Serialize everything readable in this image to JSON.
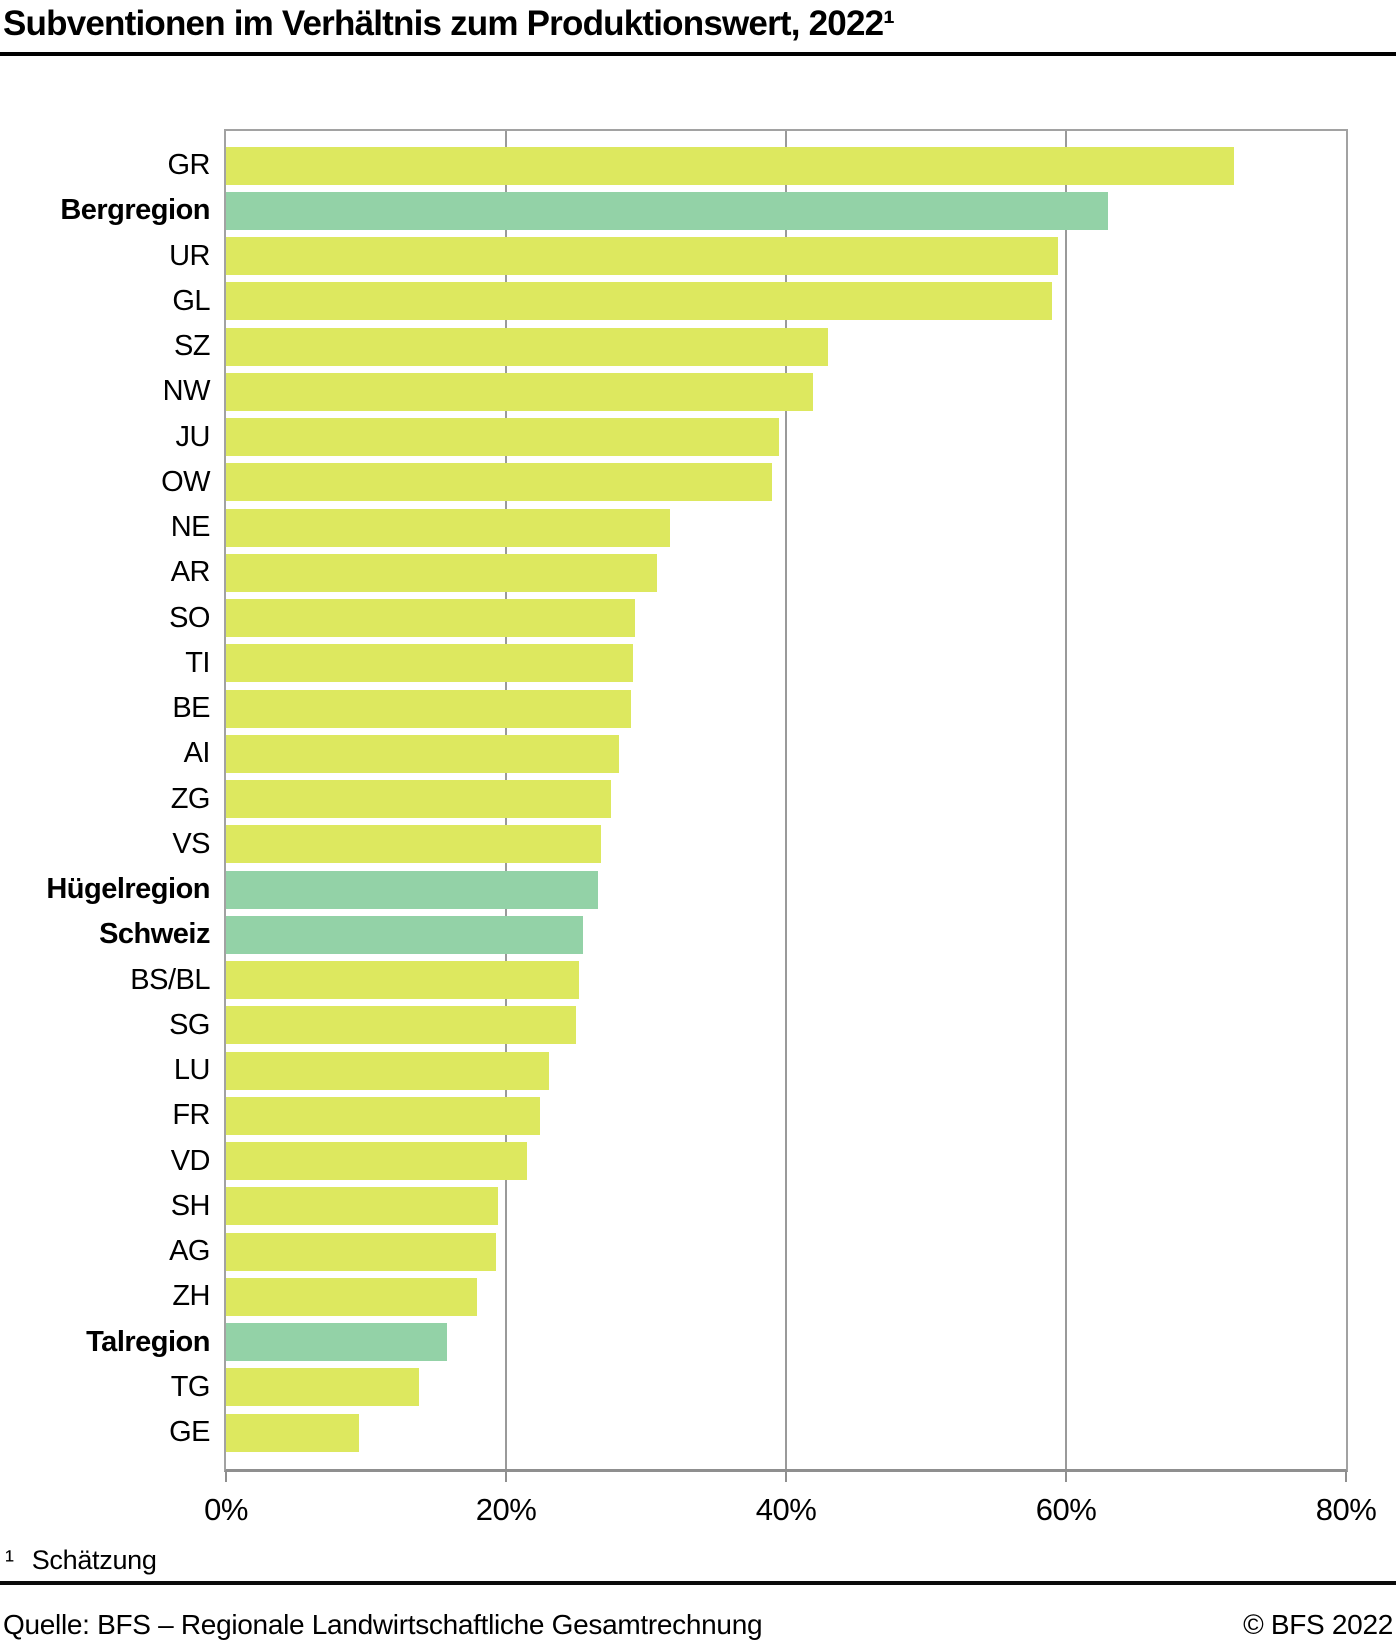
{
  "header": {
    "title": "Subventionen im Verhältnis zum Produktionswert, 2022¹"
  },
  "footnote": {
    "marker": "¹",
    "text": "Schätzung"
  },
  "footer": {
    "source": "Quelle: BFS – Regionale Landwirtschaftliche Gesamtrechnung",
    "copyright": "© BFS 2022"
  },
  "chart_data": {
    "type": "bar",
    "orientation": "horizontal",
    "title": "Subventionen im Verhältnis zum Produktionswert, 2022¹",
    "xlabel": "",
    "ylabel": "",
    "unit": "percent",
    "xlim": [
      0,
      80
    ],
    "x_ticks": [
      0,
      20,
      40,
      60,
      80
    ],
    "x_tick_labels": [
      "0%",
      "20%",
      "40%",
      "60%",
      "80%"
    ],
    "grid": "vertical gridlines at 20/40/60/80, drawn behind bars",
    "legend": "none",
    "colors": {
      "canton_bar": "#dde85f",
      "region_bar": "#93d2a7",
      "gridline": "#9a9a9a",
      "frame": "#a2a2a2"
    },
    "rows": [
      {
        "label": "GR",
        "value": 72.0,
        "region": false
      },
      {
        "label": "Bergregion",
        "value": 63.0,
        "region": true
      },
      {
        "label": "UR",
        "value": 59.4,
        "region": false
      },
      {
        "label": "GL",
        "value": 59.0,
        "region": false
      },
      {
        "label": "SZ",
        "value": 43.0,
        "region": false
      },
      {
        "label": "NW",
        "value": 41.9,
        "region": false
      },
      {
        "label": "JU",
        "value": 39.5,
        "region": false
      },
      {
        "label": "OW",
        "value": 39.0,
        "region": false
      },
      {
        "label": "NE",
        "value": 31.7,
        "region": false
      },
      {
        "label": "AR",
        "value": 30.8,
        "region": false
      },
      {
        "label": "SO",
        "value": 29.2,
        "region": false
      },
      {
        "label": "TI",
        "value": 29.1,
        "region": false
      },
      {
        "label": "BE",
        "value": 28.9,
        "region": false
      },
      {
        "label": "AI",
        "value": 28.1,
        "region": false
      },
      {
        "label": "ZG",
        "value": 27.5,
        "region": false
      },
      {
        "label": "VS",
        "value": 26.8,
        "region": false
      },
      {
        "label": "Hügelregion",
        "value": 26.6,
        "region": true
      },
      {
        "label": "Schweiz",
        "value": 25.5,
        "region": true
      },
      {
        "label": "BS/BL",
        "value": 25.2,
        "region": false
      },
      {
        "label": "SG",
        "value": 25.0,
        "region": false
      },
      {
        "label": "LU",
        "value": 23.1,
        "region": false
      },
      {
        "label": "FR",
        "value": 22.4,
        "region": false
      },
      {
        "label": "VD",
        "value": 21.5,
        "region": false
      },
      {
        "label": "SH",
        "value": 19.4,
        "region": false
      },
      {
        "label": "AG",
        "value": 19.3,
        "region": false
      },
      {
        "label": "ZH",
        "value": 17.9,
        "region": false
      },
      {
        "label": "Talregion",
        "value": 15.8,
        "region": true
      },
      {
        "label": "TG",
        "value": 13.8,
        "region": false
      },
      {
        "label": "GE",
        "value": 9.5,
        "region": false
      }
    ]
  }
}
